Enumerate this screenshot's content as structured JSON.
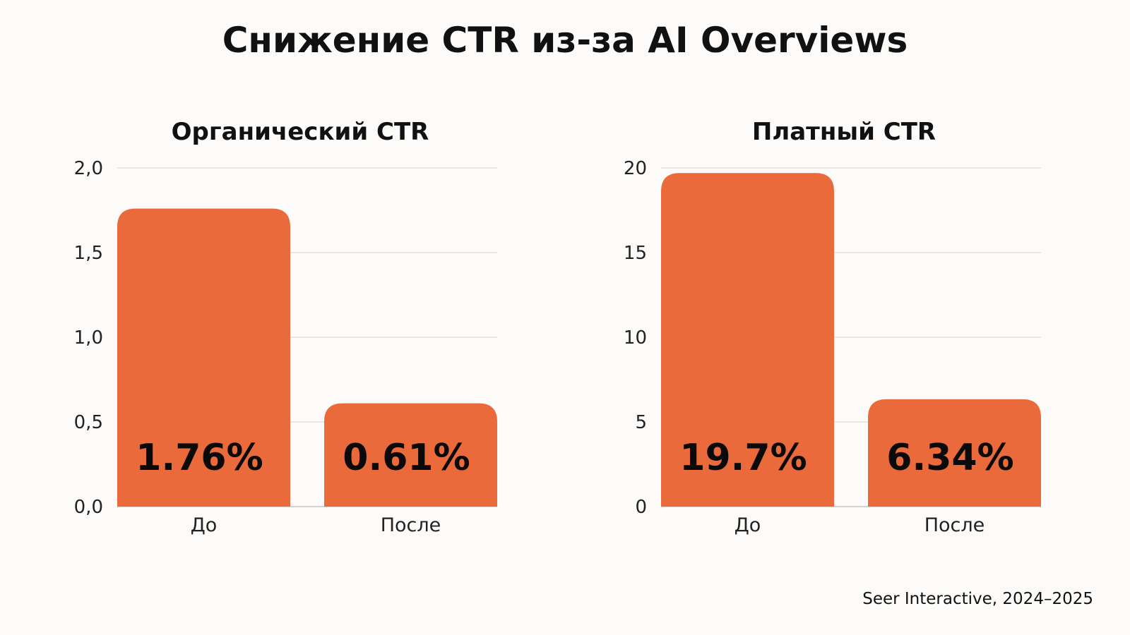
{
  "title": "Снижение CTR из-за AI Overviews",
  "source": "Seer Interactive, 2024–2025",
  "colors": {
    "bar": "#ea6a3b",
    "background": "#fcfbf9"
  },
  "chart_data": [
    {
      "type": "bar",
      "title": "Органический CTR",
      "categories": [
        "До",
        "После"
      ],
      "values": [
        1.76,
        0.61
      ],
      "value_labels": [
        "1.76%",
        "0.61%"
      ],
      "ylim": [
        0,
        2.0
      ],
      "yticks": [
        0,
        0.5,
        1.0,
        1.5,
        2.0
      ],
      "ytick_labels": [
        "0,0",
        "0,5",
        "1,0",
        "1,5",
        "2,0"
      ],
      "xlabel": "",
      "ylabel": "",
      "grid": true
    },
    {
      "type": "bar",
      "title": "Платный CTR",
      "categories": [
        "До",
        "После"
      ],
      "values": [
        19.7,
        6.34
      ],
      "value_labels": [
        "19.7%",
        "6.34%"
      ],
      "ylim": [
        0,
        20
      ],
      "yticks": [
        0,
        5,
        10,
        15,
        20
      ],
      "ytick_labels": [
        "0",
        "5",
        "10",
        "15",
        "20"
      ],
      "xlabel": "",
      "ylabel": "",
      "grid": true
    }
  ]
}
